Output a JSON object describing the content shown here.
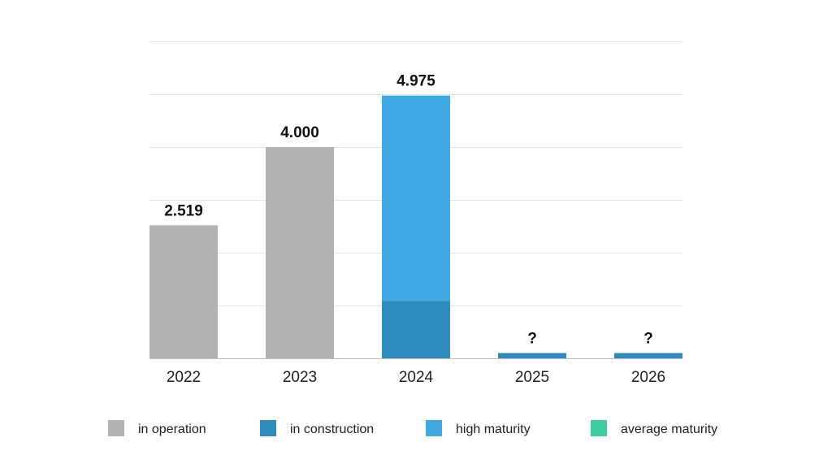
{
  "chart_data": {
    "type": "bar",
    "stacked": true,
    "categories": [
      "2022",
      "2023",
      "2024",
      "2025",
      "2026"
    ],
    "series": [
      {
        "name": "in operation",
        "color": "#b3b3b3",
        "values": [
          2519,
          4000,
          0,
          0,
          0
        ]
      },
      {
        "name": "in construction",
        "color": "#2e8bbf",
        "values": [
          0,
          0,
          1090,
          100,
          100
        ]
      },
      {
        "name": "high maturity",
        "color": "#3fa9e3",
        "values": [
          0,
          0,
          3885,
          0,
          0
        ]
      },
      {
        "name": "average maturity",
        "color": "#3ccf9c",
        "values": [
          0,
          0,
          0,
          0,
          0
        ]
      }
    ],
    "data_labels": [
      "2.519",
      "4.000",
      "4.975",
      "?",
      "?"
    ],
    "ylim": [
      0,
      6000
    ],
    "grid": true,
    "y_axis_labels_shown": false,
    "legend_position": "bottom"
  }
}
